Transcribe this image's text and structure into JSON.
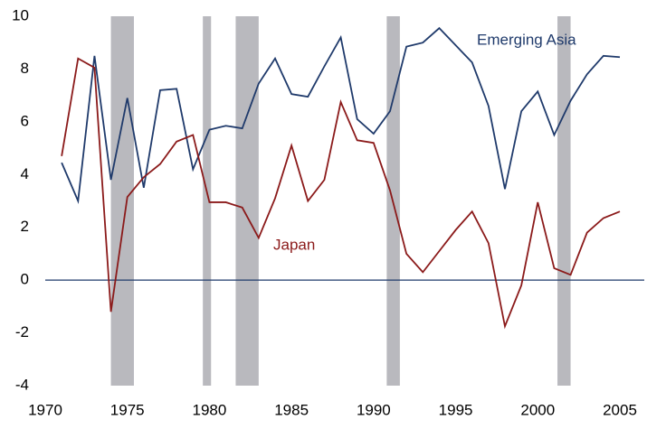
{
  "chart_data": {
    "type": "line",
    "x": [
      1971,
      1972,
      1973,
      1974,
      1975,
      1976,
      1977,
      1978,
      1979,
      1980,
      1981,
      1982,
      1983,
      1984,
      1985,
      1986,
      1987,
      1988,
      1989,
      1990,
      1991,
      1992,
      1993,
      1994,
      1995,
      1996,
      1997,
      1998,
      1999,
      2000,
      2001,
      2002,
      2003,
      2004,
      2005
    ],
    "series": [
      {
        "name": "Emerging Asia",
        "color": "#1f3a6b",
        "values": [
          4.45,
          3.0,
          8.5,
          3.8,
          6.9,
          3.5,
          7.2,
          7.25,
          4.2,
          5.7,
          5.85,
          5.75,
          7.45,
          8.4,
          7.05,
          6.95,
          8.1,
          9.2,
          6.1,
          5.55,
          6.4,
          8.85,
          9.0,
          9.55,
          8.9,
          8.25,
          6.6,
          3.45,
          6.4,
          7.15,
          5.5,
          6.8,
          7.8,
          8.5,
          8.45
        ]
      },
      {
        "name": "Japan",
        "color": "#8b1a1a",
        "values": [
          4.7,
          8.4,
          8.05,
          -1.2,
          3.15,
          3.9,
          4.4,
          5.25,
          5.5,
          2.95,
          2.95,
          2.75,
          1.6,
          3.1,
          5.1,
          3.0,
          3.8,
          6.75,
          5.3,
          5.2,
          3.4,
          1.0,
          0.3,
          1.1,
          1.9,
          2.6,
          1.4,
          -1.75,
          -0.2,
          2.95,
          0.45,
          0.2,
          1.8,
          2.35,
          2.6
        ]
      }
    ],
    "shaded_periods": [
      [
        1974.0,
        1975.4
      ],
      [
        1979.6,
        1980.1
      ],
      [
        1981.6,
        1983.0
      ],
      [
        1990.8,
        1991.6
      ],
      [
        2001.2,
        2002.0
      ]
    ],
    "shade_color": "#b9b9be",
    "xlim": [
      1970,
      2005
    ],
    "xticks": [
      1970,
      1975,
      1980,
      1985,
      1990,
      1995,
      2000,
      2005
    ],
    "ylim": [
      -4,
      10
    ],
    "yticks": [
      -4,
      -2,
      0,
      2,
      4,
      6,
      8,
      10
    ]
  }
}
